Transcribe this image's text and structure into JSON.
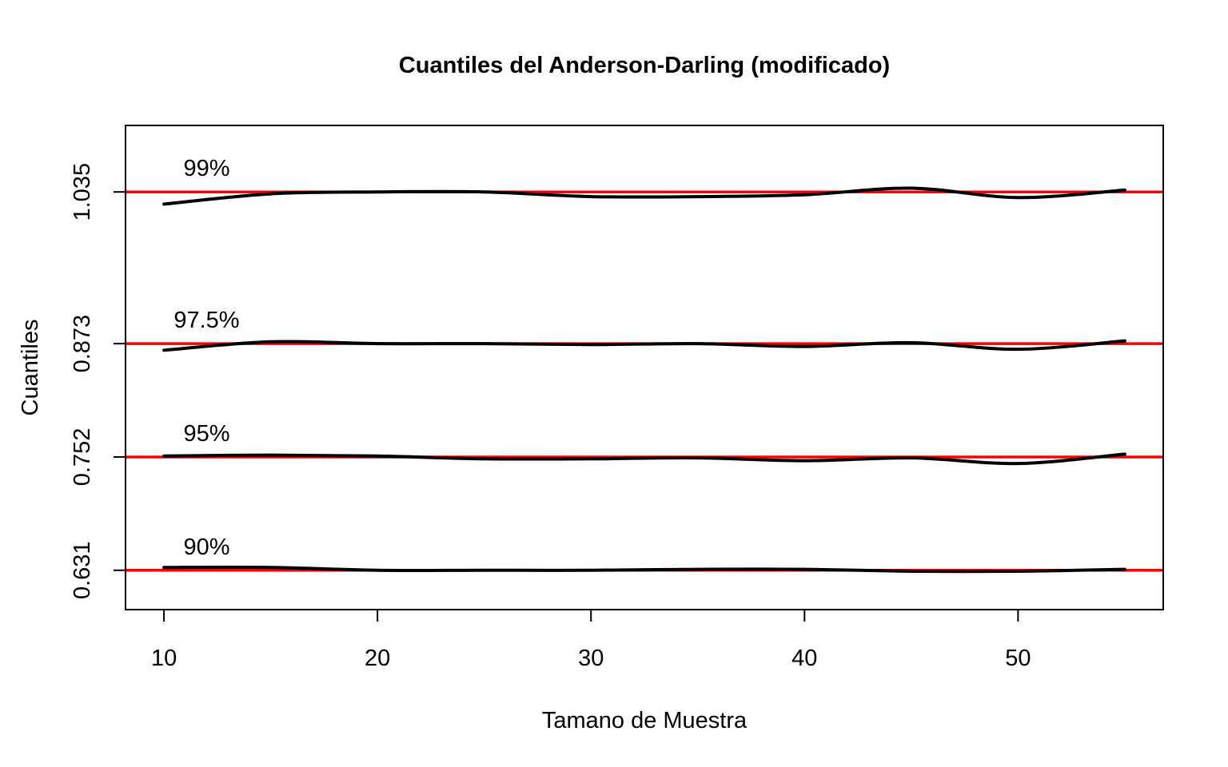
{
  "chart_data": {
    "type": "line",
    "title": "Cuantiles del Anderson-Darling (modificado)",
    "xlabel": "Tamano de Muestra",
    "ylabel": "Cuantiles",
    "xlim": [
      8.2,
      56.8
    ],
    "ylim": [
      0.589,
      1.106
    ],
    "x_ticks": [
      10,
      20,
      30,
      40,
      50
    ],
    "y_ticks": [
      0.631,
      0.752,
      0.873,
      1.035
    ],
    "y_tick_labels": [
      "0.631",
      "0.752",
      "0.873",
      "1.035"
    ],
    "x": [
      10,
      15,
      20,
      25,
      30,
      35,
      40,
      45,
      50,
      55
    ],
    "series": [
      {
        "name": "99%",
        "reference": 1.035,
        "label_x": 12,
        "values": [
          1.022,
          1.033,
          1.035,
          1.035,
          1.03,
          1.03,
          1.032,
          1.039,
          1.029,
          1.037
        ]
      },
      {
        "name": "97.5%",
        "reference": 0.873,
        "label_x": 12,
        "values": [
          0.866,
          0.875,
          0.873,
          0.873,
          0.872,
          0.873,
          0.87,
          0.874,
          0.867,
          0.876
        ]
      },
      {
        "name": "95%",
        "reference": 0.752,
        "label_x": 12,
        "values": [
          0.753,
          0.754,
          0.753,
          0.75,
          0.75,
          0.751,
          0.748,
          0.751,
          0.745,
          0.755
        ]
      },
      {
        "name": "90%",
        "reference": 0.631,
        "label_x": 12,
        "values": [
          0.634,
          0.634,
          0.631,
          0.631,
          0.631,
          0.632,
          0.632,
          0.63,
          0.63,
          0.632
        ]
      }
    ],
    "reference_color": "#ff0000",
    "line_color": "#000000",
    "grid": false,
    "legend": "none"
  }
}
